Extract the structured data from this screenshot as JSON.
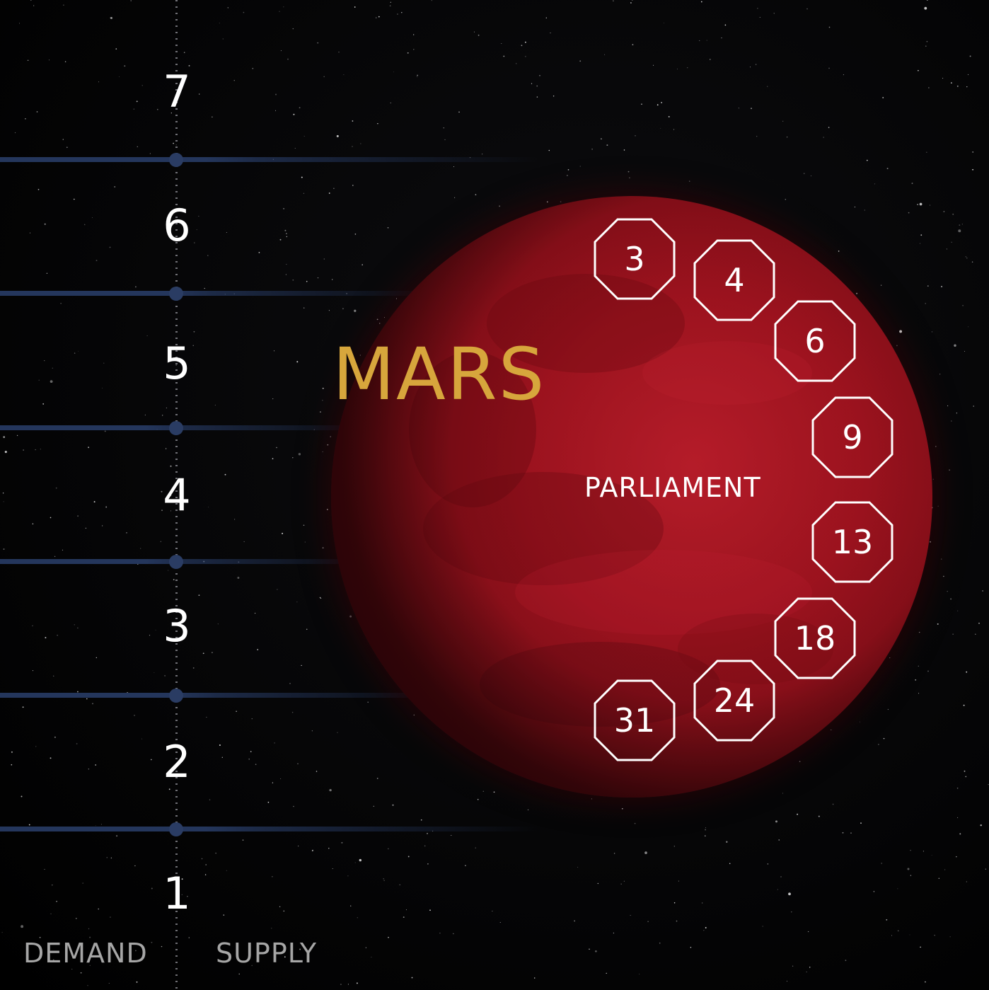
{
  "levels": [
    "7",
    "6",
    "5",
    "4",
    "3",
    "2",
    "1"
  ],
  "axis": {
    "left_label": "DEMAND",
    "right_label": "SUPPLY"
  },
  "planet": {
    "name": "MARS",
    "sublabel": "PARLIAMENT",
    "colors": {
      "name_text": "#d7a63c",
      "body": "#a0131f"
    }
  },
  "parliament_spaces": [
    "3",
    "4",
    "6",
    "9",
    "13",
    "18",
    "24",
    "31"
  ],
  "colors": {
    "row_line": "#24365c",
    "background": "#000000",
    "label_gray": "#a6a6a6"
  }
}
